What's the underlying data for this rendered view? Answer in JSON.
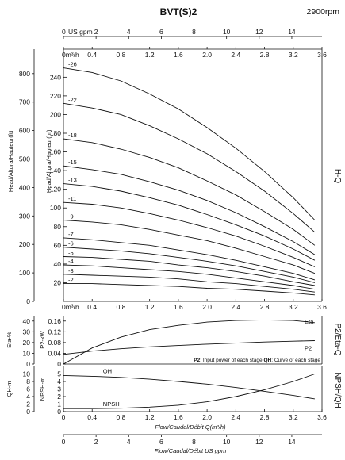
{
  "chart_data": {
    "type": "line",
    "title": "BVT(S)2",
    "speed": "2900rpm",
    "top_axis": {
      "unit_label": "US gpm",
      "ticks": [
        0,
        2,
        4,
        6,
        8,
        10,
        12,
        14
      ]
    },
    "flow_axis": {
      "unit_label": "m³/h",
      "ticks": [
        0,
        0.4,
        0.8,
        1.2,
        1.6,
        2.0,
        2.4,
        2.8,
        3.2,
        3.6
      ],
      "tick_labels": [
        "0",
        "0.4",
        "0.8",
        "1.2",
        "1.6",
        "2.0",
        "2.4",
        "2.8",
        "3.2",
        "3.6"
      ]
    },
    "hq": {
      "label": "H-Q",
      "ylabel_m": "Head/Altura/Hauteur(m)",
      "ylabel_ft": "Head/Altura/Hauteur(ft)",
      "ylim_m": [
        0,
        270
      ],
      "yticks_m": [
        20,
        40,
        60,
        80,
        100,
        120,
        140,
        160,
        180,
        200,
        220,
        240
      ],
      "yticks_ft": [
        0,
        100,
        200,
        300,
        400,
        500,
        600,
        700,
        800
      ],
      "x": [
        0,
        0.4,
        0.8,
        1.2,
        1.6,
        2.0,
        2.4,
        2.8,
        3.2,
        3.5
      ],
      "series": [
        {
          "name": "-26",
          "values": [
            250,
            245,
            236,
            222,
            206,
            186,
            164,
            139,
            111,
            87
          ]
        },
        {
          "name": "-22",
          "values": [
            212,
            207,
            200,
            188,
            174,
            158,
            139,
            118,
            94,
            74
          ]
        },
        {
          "name": "-18",
          "values": [
            174,
            170,
            163,
            154,
            143,
            129,
            114,
            96,
            77,
            60
          ]
        },
        {
          "name": "-15",
          "values": [
            145,
            141,
            136,
            128,
            119,
            108,
            95,
            80,
            64,
            50
          ]
        },
        {
          "name": "-13",
          "values": [
            126,
            123,
            118,
            111,
            103,
            93,
            82,
            70,
            56,
            44
          ]
        },
        {
          "name": "-11",
          "values": [
            106,
            104,
            100,
            94,
            87,
            79,
            70,
            59,
            47,
            37
          ]
        },
        {
          "name": "-9",
          "values": [
            87,
            85,
            82,
            77,
            71,
            65,
            57,
            48,
            39,
            30
          ]
        },
        {
          "name": "-7",
          "values": [
            68,
            66,
            63,
            60,
            55,
            50,
            44,
            37,
            30,
            23
          ]
        },
        {
          "name": "-6",
          "values": [
            58,
            56,
            54,
            51,
            47,
            43,
            38,
            32,
            26,
            20
          ]
        },
        {
          "name": "-5",
          "values": [
            48,
            47,
            45,
            43,
            39,
            36,
            32,
            27,
            21,
            17
          ]
        },
        {
          "name": "-4",
          "values": [
            39,
            38,
            36,
            34,
            32,
            29,
            25,
            21,
            17,
            13
          ]
        },
        {
          "name": "-3",
          "values": [
            29,
            28,
            27,
            26,
            24,
            21,
            19,
            16,
            13,
            10
          ]
        },
        {
          "name": "-2",
          "values": [
            19,
            19,
            18,
            17,
            16,
            14,
            13,
            11,
            9,
            7
          ]
        }
      ]
    },
    "power": {
      "ylabel_eta": "Eta-%",
      "ylabel_p2": "P2-kW",
      "yticks_eta": [
        0,
        10,
        20,
        30,
        40
      ],
      "eta_range": [
        0,
        45
      ],
      "yticks_p2": [
        0,
        0.04,
        0.08,
        0.12,
        0.16
      ],
      "p2_tick_labels": [
        "0",
        "0.04",
        "0.08",
        "0.12",
        "0.16"
      ],
      "p2_range": [
        0,
        0.18
      ],
      "side_label": "P2/Eta-Q",
      "x": [
        0,
        0.4,
        0.8,
        1.2,
        1.6,
        2.0,
        2.4,
        2.8,
        3.2,
        3.5
      ],
      "eta": {
        "name": "Eta",
        "values": [
          0,
          15,
          25,
          32,
          36,
          39,
          40.5,
          41,
          40.5,
          38.5
        ]
      },
      "p2": {
        "name": "P2",
        "values": [
          0.036,
          0.048,
          0.057,
          0.064,
          0.069,
          0.074,
          0.078,
          0.082,
          0.085,
          0.087
        ]
      },
      "note_p2": "P2",
      "note_p2_text": ": Input power of each stage ",
      "note_qh": "QH",
      "note_qh_text": ": Curve of each stage"
    },
    "npsh": {
      "ylabel_qh": "QH-m",
      "ylabel_npsh": "NPSH-m",
      "yticks_qh": [
        0,
        2,
        4,
        6,
        8,
        10
      ],
      "yticks_npsh": [
        0,
        1,
        2,
        3,
        4,
        5
      ],
      "qh_range": [
        0,
        12
      ],
      "npsh_range": [
        0,
        6
      ],
      "side_label": "NPSH/QH",
      "x": [
        0,
        0.4,
        0.8,
        1.2,
        1.6,
        2.0,
        2.4,
        2.8,
        3.2,
        3.5
      ],
      "qh": {
        "name": "QH",
        "values": [
          9.6,
          9.4,
          9.1,
          8.6,
          8.0,
          7.3,
          6.4,
          5.4,
          4.3,
          3.4
        ]
      },
      "npsh_curve": {
        "name": "NPSH",
        "values": [
          0.4,
          0.4,
          0.45,
          0.6,
          0.85,
          1.3,
          2.0,
          2.9,
          4.0,
          5.0
        ]
      }
    },
    "bottom_axis": {
      "label": "Flow/Caudal/Débit Q(m³/h)",
      "label2": "Flow/Caudal/Débit  US gpm",
      "gpm_ticks": [
        0,
        2,
        4,
        6,
        8,
        10,
        12,
        14
      ],
      "m3h_ticks": [
        0,
        0.4,
        0.8,
        1.2,
        1.6,
        2.0,
        2.4,
        2.8,
        3.2,
        3.6
      ],
      "m3h_tick_labels": [
        "0",
        "0.4",
        "0.8",
        "1.2",
        "1.6",
        "2.0",
        "2.4",
        "2.8",
        "3.2",
        "3.6"
      ]
    }
  }
}
